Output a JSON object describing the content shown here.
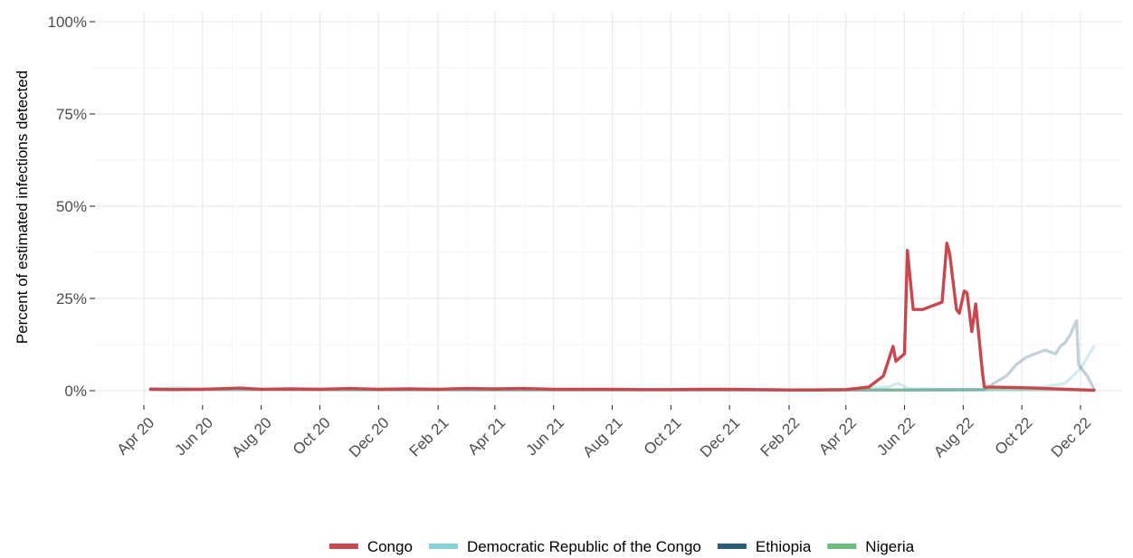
{
  "chart_data": {
    "type": "line",
    "title": "",
    "xlabel": "",
    "ylabel": "Percent of estimated infections detected",
    "x_range": [
      "2020-04-01",
      "2022-12-31"
    ],
    "ylim": [
      0,
      1
    ],
    "y_ticks": [
      {
        "value": 0,
        "label": "0%"
      },
      {
        "value": 0.25,
        "label": "25%"
      },
      {
        "value": 0.5,
        "label": "50%"
      },
      {
        "value": 0.75,
        "label": "75%"
      },
      {
        "value": 1,
        "label": "100%"
      }
    ],
    "x_ticks": [
      {
        "date": "2020-04-01",
        "label": "Apr 20"
      },
      {
        "date": "2020-06-01",
        "label": "Jun 20"
      },
      {
        "date": "2020-08-01",
        "label": "Aug 20"
      },
      {
        "date": "2020-10-01",
        "label": "Oct 20"
      },
      {
        "date": "2020-12-01",
        "label": "Dec 20"
      },
      {
        "date": "2021-02-01",
        "label": "Feb 21"
      },
      {
        "date": "2021-04-01",
        "label": "Apr 21"
      },
      {
        "date": "2021-06-01",
        "label": "Jun 21"
      },
      {
        "date": "2021-08-01",
        "label": "Aug 21"
      },
      {
        "date": "2021-10-01",
        "label": "Oct 21"
      },
      {
        "date": "2021-12-01",
        "label": "Dec 21"
      },
      {
        "date": "2022-02-01",
        "label": "Feb 22"
      },
      {
        "date": "2022-04-01",
        "label": "Apr 22"
      },
      {
        "date": "2022-06-01",
        "label": "Jun 22"
      },
      {
        "date": "2022-08-01",
        "label": "Aug 22"
      },
      {
        "date": "2022-10-01",
        "label": "Oct 22"
      },
      {
        "date": "2022-12-01",
        "label": "Dec 22"
      }
    ],
    "grid": true,
    "legend_position": "bottom",
    "series": [
      {
        "name": "Congo",
        "color": "#c8474f",
        "points": [
          [
            "2020-04-08",
            0.004
          ],
          [
            "2020-05-01",
            0.003
          ],
          [
            "2020-06-01",
            0.004
          ],
          [
            "2020-07-10",
            0.007
          ],
          [
            "2020-08-01",
            0.004
          ],
          [
            "2020-09-01",
            0.005
          ],
          [
            "2020-10-01",
            0.004
          ],
          [
            "2020-11-01",
            0.006
          ],
          [
            "2020-12-01",
            0.004
          ],
          [
            "2021-01-01",
            0.005
          ],
          [
            "2021-02-01",
            0.004
          ],
          [
            "2021-03-01",
            0.006
          ],
          [
            "2021-04-01",
            0.005
          ],
          [
            "2021-05-01",
            0.006
          ],
          [
            "2021-06-01",
            0.004
          ],
          [
            "2021-07-01",
            0.004
          ],
          [
            "2021-08-01",
            0.004
          ],
          [
            "2021-09-01",
            0.003
          ],
          [
            "2021-10-01",
            0.003
          ],
          [
            "2021-11-01",
            0.004
          ],
          [
            "2021-12-01",
            0.004
          ],
          [
            "2022-01-01",
            0.003
          ],
          [
            "2022-02-01",
            0.002
          ],
          [
            "2022-03-01",
            0.002
          ],
          [
            "2022-04-01",
            0.003
          ],
          [
            "2022-04-25",
            0.01
          ],
          [
            "2022-05-10",
            0.04
          ],
          [
            "2022-05-20",
            0.12
          ],
          [
            "2022-05-23",
            0.08
          ],
          [
            "2022-06-01",
            0.1
          ],
          [
            "2022-06-04",
            0.38
          ],
          [
            "2022-06-10",
            0.22
          ],
          [
            "2022-06-20",
            0.22
          ],
          [
            "2022-07-10",
            0.24
          ],
          [
            "2022-07-15",
            0.4
          ],
          [
            "2022-07-18",
            0.37
          ],
          [
            "2022-07-25",
            0.22
          ],
          [
            "2022-07-28",
            0.21
          ],
          [
            "2022-08-02",
            0.27
          ],
          [
            "2022-08-05",
            0.265
          ],
          [
            "2022-08-10",
            0.16
          ],
          [
            "2022-08-14",
            0.235
          ],
          [
            "2022-08-21",
            0.05
          ],
          [
            "2022-08-23",
            0.01
          ],
          [
            "2022-09-15",
            0.009
          ],
          [
            "2022-10-15",
            0.007
          ],
          [
            "2022-11-15",
            0.004
          ],
          [
            "2022-12-15",
            0.001
          ]
        ]
      },
      {
        "name": "Democratic Republic of the Congo",
        "color": "#87d1db",
        "points": [
          [
            "2020-04-08",
            0.005
          ],
          [
            "2020-05-10",
            0.008
          ],
          [
            "2020-06-01",
            0.004
          ],
          [
            "2020-09-01",
            0.003
          ],
          [
            "2021-01-01",
            0.003
          ],
          [
            "2021-06-01",
            0.003
          ],
          [
            "2021-10-01",
            0.002
          ],
          [
            "2022-02-01",
            0.002
          ],
          [
            "2022-04-01",
            0.004
          ],
          [
            "2022-05-15",
            0.01
          ],
          [
            "2022-05-25",
            0.02
          ],
          [
            "2022-06-05",
            0.005
          ],
          [
            "2022-08-01",
            0.002
          ],
          [
            "2022-09-15",
            0.003
          ],
          [
            "2022-10-15",
            0.006
          ],
          [
            "2022-11-15",
            0.02
          ],
          [
            "2022-12-01",
            0.06
          ],
          [
            "2022-12-15",
            0.12
          ]
        ]
      },
      {
        "name": "Ethiopia",
        "color": "#2c5c78",
        "points": [
          [
            "2020-04-08",
            0.005
          ],
          [
            "2020-06-01",
            0.004
          ],
          [
            "2020-10-01",
            0.004
          ],
          [
            "2021-02-01",
            0.004
          ],
          [
            "2021-06-01",
            0.003
          ],
          [
            "2021-10-01",
            0.003
          ],
          [
            "2022-02-01",
            0.002
          ],
          [
            "2022-06-01",
            0.002
          ],
          [
            "2022-08-23",
            0.003
          ],
          [
            "2022-09-05",
            0.025
          ],
          [
            "2022-09-15",
            0.04
          ],
          [
            "2022-09-25",
            0.07
          ],
          [
            "2022-10-05",
            0.09
          ],
          [
            "2022-10-15",
            0.1
          ],
          [
            "2022-10-25",
            0.11
          ],
          [
            "2022-11-05",
            0.1
          ],
          [
            "2022-11-10",
            0.12
          ],
          [
            "2022-11-15",
            0.13
          ],
          [
            "2022-11-20",
            0.15
          ],
          [
            "2022-11-27",
            0.19
          ],
          [
            "2022-11-29",
            0.07
          ],
          [
            "2022-12-08",
            0.04
          ],
          [
            "2022-12-15",
            0.005
          ]
        ]
      },
      {
        "name": "Nigeria",
        "color": "#6cbd7c",
        "points": [
          [
            "2020-04-08",
            0.003
          ],
          [
            "2020-08-01",
            0.003
          ],
          [
            "2020-12-01",
            0.002
          ],
          [
            "2021-06-01",
            0.002
          ],
          [
            "2021-12-01",
            0.002
          ],
          [
            "2022-04-01",
            0.002
          ],
          [
            "2022-06-01",
            0.002
          ],
          [
            "2022-09-01",
            0.003
          ],
          [
            "2022-11-01",
            0.003
          ],
          [
            "2022-12-15",
            0.002
          ]
        ]
      }
    ]
  }
}
